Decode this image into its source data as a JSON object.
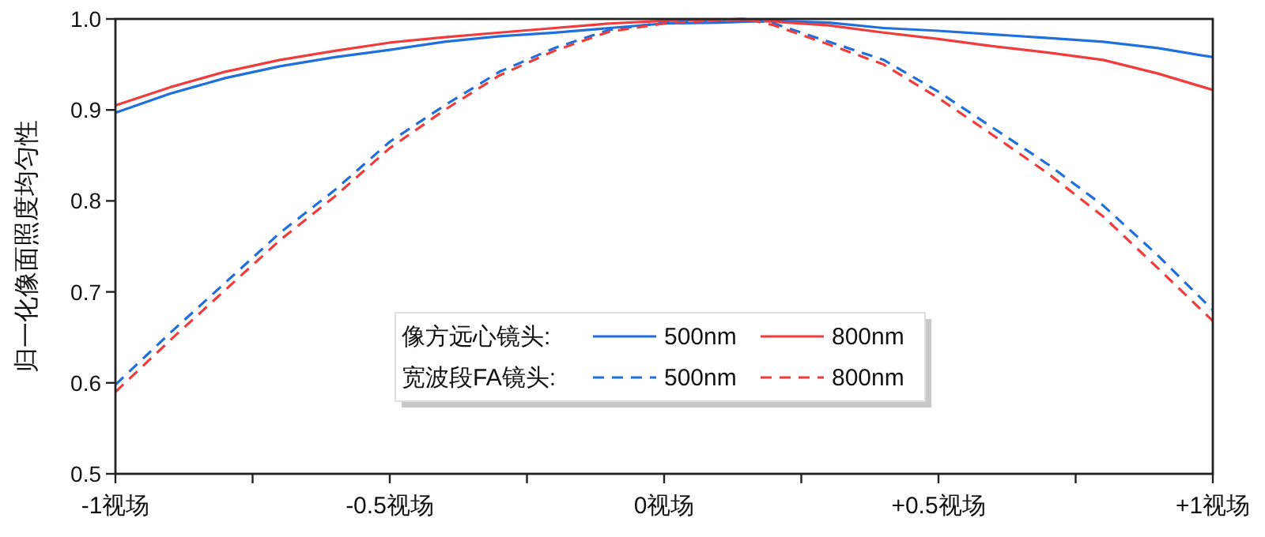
{
  "chart_data": {
    "type": "line",
    "ylabel": "归一化像面照度均匀性",
    "xlim": [
      -1,
      1
    ],
    "xticks": [
      {
        "value": -1,
        "label": "-1视场"
      },
      {
        "value": -0.75,
        "label": null
      },
      {
        "value": -0.5,
        "label": "-0.5视场"
      },
      {
        "value": -0.25,
        "label": null
      },
      {
        "value": 0,
        "label": "0视场"
      },
      {
        "value": 0.25,
        "label": null
      },
      {
        "value": 0.5,
        "label": "+0.5视场"
      },
      {
        "value": 0.75,
        "label": null
      },
      {
        "value": 1,
        "label": "+1视场"
      }
    ],
    "ylim": [
      0.5,
      1.0
    ],
    "yticks": [
      0.5,
      0.6,
      0.7,
      0.8,
      0.9,
      {
        "value": 1.0,
        "label": "1.0"
      }
    ],
    "grid": false,
    "legend": "bottom",
    "marker": "none",
    "annotations": [
      "像方远心镜头:",
      "宽波段FA镜头:"
    ],
    "x": [
      -1,
      -0.9,
      -0.8,
      -0.7,
      -0.6,
      -0.5,
      -0.4,
      -0.3,
      -0.2,
      -0.1,
      0,
      0.1,
      0.15,
      0.2,
      0.3,
      0.4,
      0.5,
      0.6,
      0.7,
      0.8,
      0.9,
      1
    ],
    "series": [
      {
        "name": "500nm",
        "color": "#1f6fdc",
        "line_style": "solid",
        "values": [
          0.897,
          0.918,
          0.935,
          0.948,
          0.958,
          0.966,
          0.975,
          0.981,
          0.985,
          0.99,
          0.995,
          0.996,
          0.997,
          0.998,
          0.996,
          0.99,
          0.987,
          0.983,
          0.979,
          0.975,
          0.968,
          0.958
        ]
      },
      {
        "name": "800nm",
        "color": "#f03c3c",
        "line_style": "solid",
        "values": [
          0.905,
          0.925,
          0.942,
          0.955,
          0.965,
          0.974,
          0.98,
          0.985,
          0.99,
          0.995,
          0.998,
          0.999,
          0.999,
          0.997,
          0.993,
          0.985,
          0.978,
          0.97,
          0.963,
          0.955,
          0.94,
          0.922
        ]
      },
      {
        "name": "500nm",
        "color": "#1f6fdc",
        "line_style": "dashed",
        "values": [
          0.598,
          0.655,
          0.71,
          0.765,
          0.812,
          0.865,
          0.905,
          0.942,
          0.968,
          0.988,
          0.996,
          0.999,
          1.0,
          0.995,
          0.975,
          0.955,
          0.92,
          0.88,
          0.84,
          0.795,
          0.74,
          0.68
        ]
      },
      {
        "name": "800nm",
        "color": "#f03c3c",
        "line_style": "dashed",
        "values": [
          0.59,
          0.647,
          0.702,
          0.757,
          0.805,
          0.858,
          0.9,
          0.938,
          0.965,
          0.986,
          0.995,
          0.999,
          1.0,
          0.993,
          0.972,
          0.95,
          0.913,
          0.872,
          0.83,
          0.783,
          0.726,
          0.668
        ]
      }
    ]
  }
}
